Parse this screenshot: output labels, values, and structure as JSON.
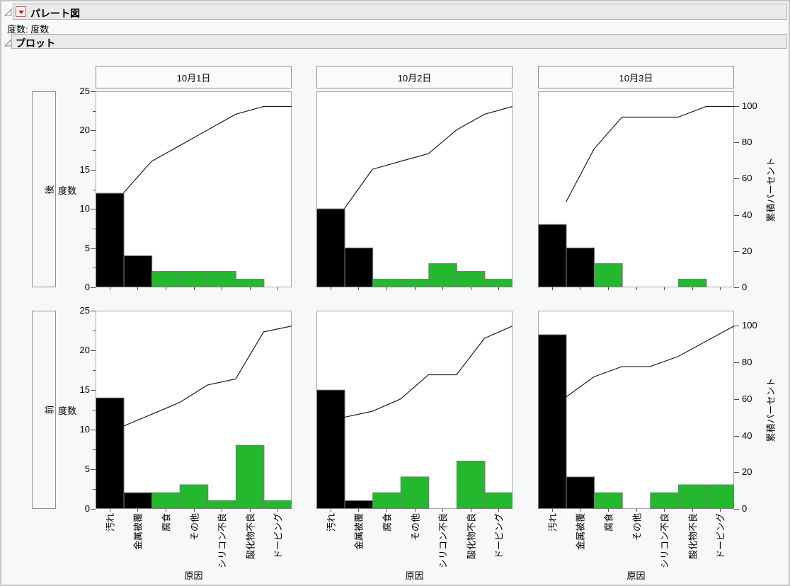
{
  "window": {
    "title": "パレート図",
    "subtitle": "度数: 度数",
    "section_title": "プロット"
  },
  "icons": {
    "disclosure_open": "disclosure-triangle",
    "red_menu": "red-triangle-menu"
  },
  "colors": {
    "green_bar": "#23b82e",
    "black_bar": "#000000",
    "bar_stroke": "#7a7a7a",
    "plot_border": "#a4a6a7",
    "cum_line": "#1c1c1c",
    "accent_red": "#cf1414",
    "header_bg": "#e9eaeb"
  },
  "chart_data": {
    "type": "bar",
    "subtype": "comparative-pareto",
    "title": "パレート図",
    "xlabel": "原因",
    "ylabel_left": "度数",
    "ylabel_right": "累積パーセント",
    "ylim": [
      0,
      25
    ],
    "yticks": [
      0,
      5,
      10,
      15,
      20,
      25
    ],
    "percent_ticks": [
      0,
      20,
      40,
      60,
      80,
      100
    ],
    "percent_top_fraction": 0.924,
    "grid": false,
    "legend": "none",
    "categories": [
      "汚れ",
      "金属被覆",
      "腐食",
      "その他",
      "シリコン不良",
      "酸化物不良",
      "ドーピング"
    ],
    "columns": [
      "10月1日",
      "10月2日",
      "10月3日"
    ],
    "rows": [
      "後",
      "前"
    ],
    "black_bar_categories": 2,
    "cells": [
      {
        "row": "後",
        "column": "10月1日",
        "values": [
          12,
          4,
          2,
          2,
          2,
          1,
          0
        ],
        "total": 23,
        "cum_pct": [
          52.2,
          69.6,
          78.3,
          87.0,
          95.7,
          100.0,
          100.0
        ]
      },
      {
        "row": "後",
        "column": "10月2日",
        "values": [
          10,
          5,
          1,
          1,
          3,
          2,
          1
        ],
        "total": 23,
        "cum_pct": [
          43.5,
          65.2,
          69.6,
          73.9,
          87.0,
          95.7,
          100.0
        ]
      },
      {
        "row": "後",
        "column": "10月3日",
        "values": [
          8,
          5,
          3,
          0,
          0,
          1,
          0
        ],
        "total": 17,
        "cum_pct": [
          47.1,
          76.5,
          94.1,
          94.1,
          94.1,
          100.0,
          100.0
        ]
      },
      {
        "row": "前",
        "column": "10月1日",
        "values": [
          14,
          2,
          2,
          3,
          1,
          8,
          1
        ],
        "total": 31,
        "cum_pct": [
          45.2,
          51.6,
          58.1,
          67.7,
          71.0,
          96.8,
          100.0
        ]
      },
      {
        "row": "前",
        "column": "10月2日",
        "values": [
          15,
          1,
          2,
          4,
          0,
          6,
          2
        ],
        "total": 30,
        "cum_pct": [
          50.0,
          53.3,
          60.0,
          73.3,
          73.3,
          93.3,
          100.0
        ]
      },
      {
        "row": "前",
        "column": "10月3日",
        "values": [
          22,
          4,
          2,
          0,
          2,
          3,
          3
        ],
        "total": 36,
        "cum_pct": [
          61.1,
          72.2,
          77.8,
          77.8,
          83.3,
          91.7,
          100.0
        ]
      }
    ]
  }
}
